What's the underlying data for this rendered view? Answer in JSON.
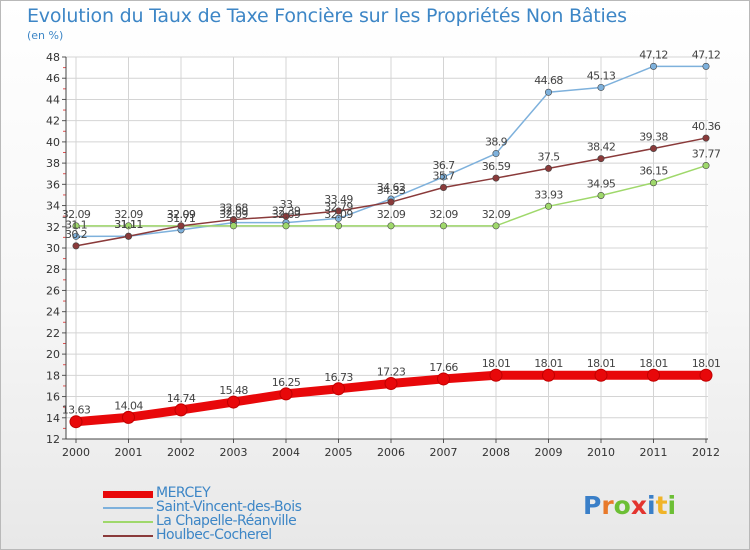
{
  "title": "Evolution du Taux de Taxe Foncière sur les Propriétés Non Bâties",
  "subtitle": "(en %)",
  "logo": {
    "text": "Proxiti",
    "colors": [
      "#3a7fc8",
      "#e8792a",
      "#6cbf35",
      "#e3342f",
      "#3a7fc8",
      "#f0b429",
      "#6cbf35"
    ]
  },
  "chart_data": {
    "type": "line",
    "x": [
      "2000",
      "2001",
      "2002",
      "2003",
      "2004",
      "2005",
      "2006",
      "2007",
      "2008",
      "2009",
      "2010",
      "2011",
      "2012"
    ],
    "ylim": [
      12,
      48
    ],
    "yticks": [
      12,
      14,
      16,
      18,
      20,
      22,
      24,
      26,
      28,
      30,
      32,
      34,
      36,
      38,
      40,
      42,
      44,
      46,
      48
    ],
    "grid": true,
    "legend_position": "bottom-left",
    "series": [
      {
        "name": "MERCEY",
        "color": "#e8080a",
        "values": [
          13.63,
          14.04,
          14.74,
          15.48,
          16.25,
          16.73,
          17.23,
          17.66,
          18.01,
          18.01,
          18.01,
          18.01,
          18.01
        ],
        "labels": [
          "13.63",
          "14.04",
          "14.74",
          "15.48",
          "16.25",
          "16.73",
          "17.23",
          "17.66",
          "18.01",
          "18.01",
          "18.01",
          "18.01",
          "18.01"
        ]
      },
      {
        "name": "Saint-Vincent-des-Bois",
        "color": "#7eb1dc",
        "values": [
          31.1,
          31.11,
          31.71,
          32.39,
          32.39,
          32.79,
          34.62,
          36.7,
          38.9,
          44.68,
          45.13,
          47.12,
          47.12
        ],
        "labels": [
          "31.1",
          "31.11",
          "31.71",
          "32.39",
          "32.39",
          "32.79",
          "34.62",
          "36.7",
          "38.9",
          "44.68",
          "45.13",
          "47.12",
          "47.12"
        ]
      },
      {
        "name": "La Chapelle-Réanville",
        "color": "#9fd86b",
        "values": [
          32.09,
          32.09,
          32.09,
          32.09,
          32.09,
          32.09,
          32.09,
          32.09,
          32.09,
          33.93,
          34.95,
          36.15,
          37.77
        ],
        "labels": [
          "32.09",
          "32.09",
          "32.09",
          "32.09",
          "32.09",
          "32.09",
          "32.09",
          "32.09",
          "32.09",
          "33.93",
          "34.95",
          "36.15",
          "37.77"
        ]
      },
      {
        "name": "Houlbec-Cocherel",
        "color": "#8a3a3a",
        "values": [
          30.2,
          31.11,
          32.09,
          32.68,
          33.0,
          33.49,
          34.33,
          35.7,
          36.59,
          37.5,
          38.42,
          39.38,
          40.36
        ],
        "labels": [
          "30.2",
          "31.11",
          "32.09",
          "32.68",
          "33",
          "33.49",
          "34.33",
          "35.7",
          "36.59",
          "37.5",
          "38.42",
          "39.38",
          "40.36"
        ]
      }
    ]
  }
}
